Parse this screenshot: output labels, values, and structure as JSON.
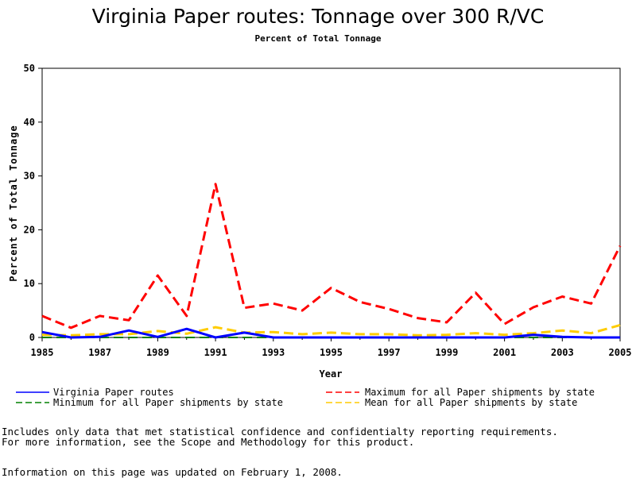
{
  "page": {
    "title": "Virginia Paper routes: Tonnage over 300 R/VC",
    "subtitle": "Percent of Total Tonnage",
    "footnotes": [
      "Includes only data that met statistical confidence and confidentialty reporting requirements.",
      "For more information, see the Scope and Methodology for this product."
    ],
    "updated": "Information on this page was updated on February 1, 2008."
  },
  "chart_data": {
    "type": "line",
    "title": "Virginia Paper routes: Tonnage over 300 R/VC",
    "subtitle": "Percent of Total Tonnage",
    "xlabel": "Year",
    "ylabel": "Percent of Total Tonnage",
    "xlim": [
      1985,
      2005
    ],
    "ylim": [
      0,
      50
    ],
    "xticks": [
      1985,
      1987,
      1989,
      1991,
      1993,
      1995,
      1997,
      1999,
      2001,
      2003,
      2005
    ],
    "yticks": [
      0,
      10,
      20,
      30,
      40,
      50
    ],
    "grid": false,
    "legend_position": "bottom",
    "x": [
      1985,
      1986,
      1987,
      1988,
      1989,
      1990,
      1991,
      1992,
      1993,
      1994,
      1995,
      1996,
      1997,
      1998,
      1999,
      2000,
      2001,
      2002,
      2003,
      2004,
      2005
    ],
    "series": [
      {
        "name": "Virginia Paper routes",
        "color": "#0000ff",
        "dash": "solid",
        "width": 3,
        "values": [
          1.0,
          0.0,
          0.1,
          1.3,
          0.1,
          1.6,
          0.0,
          0.9,
          0.0,
          0.0,
          0.0,
          0.0,
          0.0,
          0.0,
          0.0,
          0.0,
          0.0,
          0.5,
          0.1,
          0.0,
          0.0
        ]
      },
      {
        "name": "Maximum for all Paper shipments by state",
        "color": "#ff0000",
        "dash": "dashed",
        "width": 3,
        "values": [
          4.0,
          1.8,
          4.0,
          3.2,
          11.5,
          4.0,
          28.5,
          5.5,
          6.3,
          5.0,
          9.2,
          6.6,
          5.3,
          3.6,
          2.8,
          8.3,
          2.5,
          5.6,
          7.6,
          6.3,
          17.0
        ]
      },
      {
        "name": "Minimum for all Paper shipments by state",
        "color": "#008000",
        "dash": "dashed",
        "width": 2,
        "values": [
          0,
          0,
          0,
          0,
          0,
          0,
          0,
          0,
          0,
          0,
          0,
          0,
          0,
          0,
          0,
          0,
          0,
          0,
          0,
          0,
          0
        ]
      },
      {
        "name": "Mean for all Paper shipments by state",
        "color": "#ffcc00",
        "dash": "dashed",
        "width": 3,
        "values": [
          0.5,
          0.4,
          0.6,
          0.6,
          1.2,
          0.7,
          1.9,
          0.9,
          1.0,
          0.6,
          0.9,
          0.6,
          0.6,
          0.4,
          0.5,
          0.8,
          0.5,
          0.8,
          1.3,
          0.8,
          2.3
        ]
      }
    ]
  }
}
